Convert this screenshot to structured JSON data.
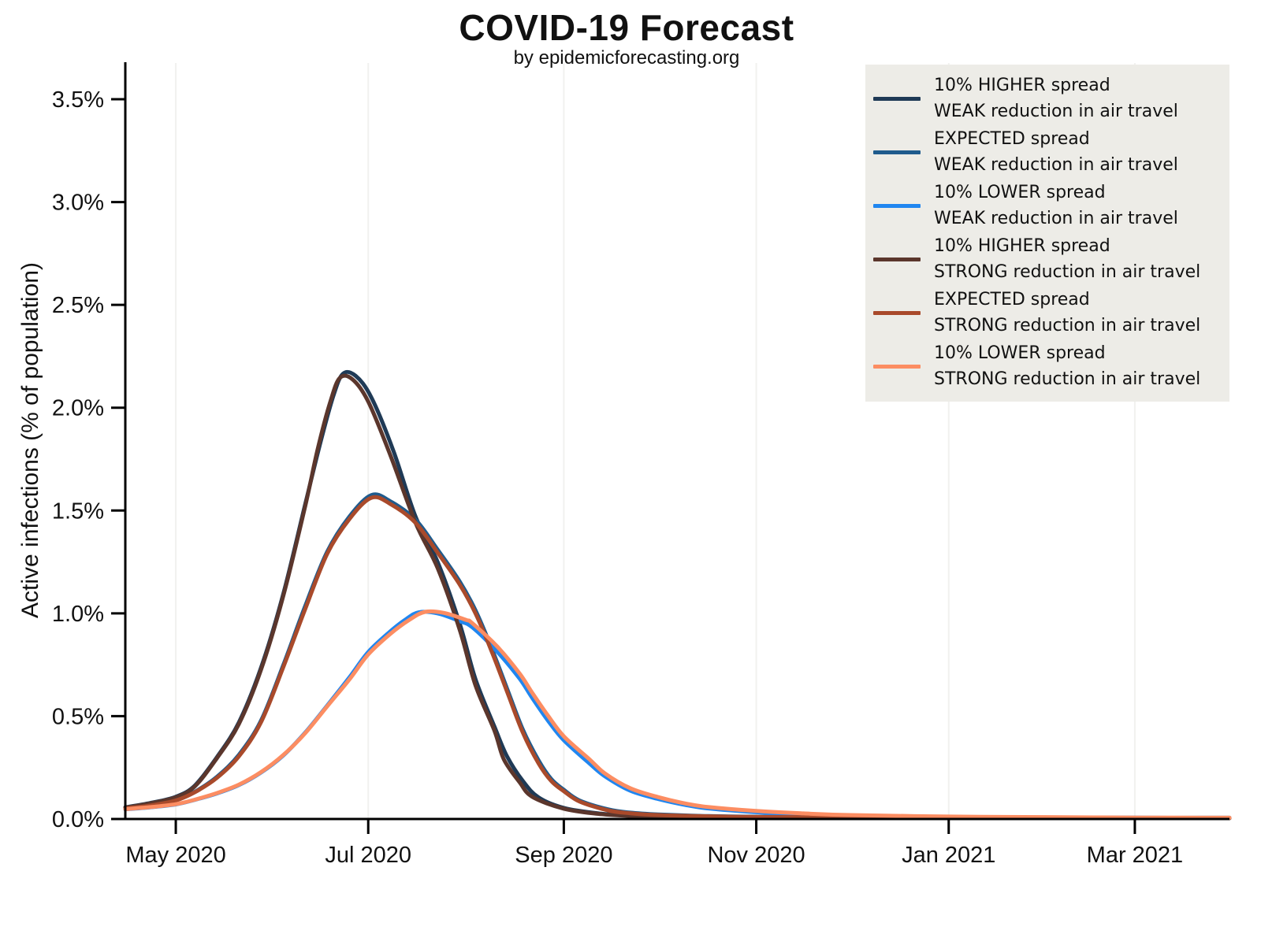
{
  "title": "COVID-19 Forecast",
  "subtitle": "by epidemicforecasting.org",
  "chart_data": {
    "type": "line",
    "title": "COVID-19 Forecast",
    "subtitle": "by epidemicforecasting.org",
    "grid": "vertical-only",
    "legend_position": "top-right",
    "x_axis": {
      "unit": "days since 2020-04-15",
      "range": [
        0,
        350
      ],
      "ticks": [
        {
          "t": 16,
          "label": "May 2020"
        },
        {
          "t": 77,
          "label": "Jul 2020"
        },
        {
          "t": 139,
          "label": "Sep 2020"
        },
        {
          "t": 200,
          "label": "Nov 2020"
        },
        {
          "t": 261,
          "label": "Jan 2021"
        },
        {
          "t": 320,
          "label": "Mar 2021"
        }
      ]
    },
    "y_axis": {
      "label": "Active infections (% of population)",
      "unit": "percent of population",
      "range": [
        0,
        3.68
      ],
      "ticks": [
        {
          "v": 0.0,
          "label": "0.0%"
        },
        {
          "v": 0.5,
          "label": "0.5%"
        },
        {
          "v": 1.0,
          "label": "1.0%"
        },
        {
          "v": 1.5,
          "label": "1.5%"
        },
        {
          "v": 2.0,
          "label": "2.0%"
        },
        {
          "v": 2.5,
          "label": "2.5%"
        },
        {
          "v": 3.0,
          "label": "3.0%"
        },
        {
          "v": 3.5,
          "label": "3.5%"
        }
      ]
    },
    "series": [
      {
        "id": "higher-weak",
        "label_line1": "10% HIGHER spread",
        "label_line2": "WEAK reduction in air travel",
        "color": "#1f3a56",
        "points": [
          [
            0,
            0.057
          ],
          [
            8,
            0.078
          ],
          [
            16,
            0.108
          ],
          [
            22,
            0.162
          ],
          [
            29,
            0.3
          ],
          [
            36,
            0.47
          ],
          [
            43,
            0.735
          ],
          [
            50,
            1.09
          ],
          [
            57,
            1.53
          ],
          [
            62,
            1.84
          ],
          [
            66,
            2.06
          ],
          [
            69,
            2.165
          ],
          [
            73,
            2.155
          ],
          [
            78,
            2.05
          ],
          [
            85,
            1.79
          ],
          [
            92,
            1.47
          ],
          [
            99,
            1.25
          ],
          [
            106,
            0.95
          ],
          [
            111,
            0.68
          ],
          [
            117,
            0.45
          ],
          [
            121,
            0.305
          ],
          [
            126,
            0.185
          ],
          [
            131,
            0.105
          ],
          [
            139,
            0.054
          ],
          [
            150,
            0.027
          ],
          [
            160,
            0.016
          ],
          [
            169,
            0.012
          ],
          [
            185,
            0.008
          ],
          [
            200,
            0.007
          ],
          [
            230,
            0.006
          ],
          [
            261,
            0.005
          ],
          [
            292,
            0.005
          ],
          [
            320,
            0.004
          ],
          [
            350,
            0.004
          ]
        ]
      },
      {
        "id": "expected-weak",
        "label_line1": "EXPECTED spread",
        "label_line2": "WEAK reduction in air travel",
        "color": "#1f5b8d",
        "points": [
          [
            0,
            0.053
          ],
          [
            8,
            0.068
          ],
          [
            16,
            0.092
          ],
          [
            22,
            0.132
          ],
          [
            29,
            0.205
          ],
          [
            36,
            0.312
          ],
          [
            43,
            0.478
          ],
          [
            50,
            0.745
          ],
          [
            57,
            1.035
          ],
          [
            64,
            1.3
          ],
          [
            71,
            1.47
          ],
          [
            78,
            1.575
          ],
          [
            84,
            1.545
          ],
          [
            92,
            1.455
          ],
          [
            99,
            1.31
          ],
          [
            106,
            1.155
          ],
          [
            111,
            1.015
          ],
          [
            116,
            0.835
          ],
          [
            121,
            0.635
          ],
          [
            126,
            0.435
          ],
          [
            131,
            0.285
          ],
          [
            135,
            0.195
          ],
          [
            139,
            0.142
          ],
          [
            144,
            0.09
          ],
          [
            153,
            0.047
          ],
          [
            160,
            0.031
          ],
          [
            169,
            0.022
          ],
          [
            185,
            0.014
          ],
          [
            200,
            0.011
          ],
          [
            230,
            0.009
          ],
          [
            261,
            0.008
          ],
          [
            292,
            0.007
          ],
          [
            320,
            0.006
          ],
          [
            350,
            0.006
          ]
        ]
      },
      {
        "id": "lower-weak",
        "label_line1": "10% LOWER spread",
        "label_line2": "WEAK reduction in air travel",
        "color": "#2086f0",
        "points": [
          [
            0,
            0.047
          ],
          [
            8,
            0.057
          ],
          [
            16,
            0.071
          ],
          [
            22,
            0.093
          ],
          [
            29,
            0.124
          ],
          [
            36,
            0.165
          ],
          [
            43,
            0.226
          ],
          [
            50,
            0.308
          ],
          [
            57,
            0.42
          ],
          [
            64,
            0.552
          ],
          [
            71,
            0.688
          ],
          [
            77,
            0.812
          ],
          [
            84,
            0.912
          ],
          [
            89,
            0.972
          ],
          [
            93,
            1.005
          ],
          [
            99,
            1.0
          ],
          [
            106,
            0.962
          ],
          [
            110,
            0.932
          ],
          [
            118,
            0.812
          ],
          [
            125,
            0.682
          ],
          [
            129,
            0.588
          ],
          [
            134,
            0.478
          ],
          [
            139,
            0.383
          ],
          [
            147,
            0.272
          ],
          [
            152,
            0.208
          ],
          [
            160,
            0.138
          ],
          [
            169,
            0.097
          ],
          [
            178,
            0.067
          ],
          [
            185,
            0.051
          ],
          [
            200,
            0.033
          ],
          [
            215,
            0.022
          ],
          [
            230,
            0.015
          ],
          [
            261,
            0.009
          ],
          [
            292,
            0.007
          ],
          [
            320,
            0.006
          ],
          [
            350,
            0.005
          ]
        ]
      },
      {
        "id": "higher-strong",
        "label_line1": "10% HIGHER spread",
        "label_line2": "STRONG reduction in air travel",
        "color": "#5b362c",
        "points": [
          [
            0,
            0.055
          ],
          [
            8,
            0.076
          ],
          [
            16,
            0.105
          ],
          [
            22,
            0.158
          ],
          [
            29,
            0.295
          ],
          [
            36,
            0.462
          ],
          [
            43,
            0.725
          ],
          [
            50,
            1.08
          ],
          [
            57,
            1.52
          ],
          [
            61,
            1.8
          ],
          [
            65,
            2.03
          ],
          [
            68,
            2.145
          ],
          [
            72,
            2.138
          ],
          [
            77,
            2.03
          ],
          [
            84,
            1.77
          ],
          [
            92,
            1.44
          ],
          [
            99,
            1.22
          ],
          [
            106,
            0.92
          ],
          [
            111,
            0.65
          ],
          [
            117,
            0.43
          ],
          [
            120,
            0.29
          ],
          [
            125,
            0.178
          ],
          [
            129,
            0.108
          ],
          [
            139,
            0.05
          ],
          [
            150,
            0.025
          ],
          [
            160,
            0.015
          ],
          [
            169,
            0.011
          ],
          [
            185,
            0.007
          ],
          [
            200,
            0.006
          ],
          [
            230,
            0.005
          ],
          [
            261,
            0.004
          ],
          [
            292,
            0.004
          ],
          [
            320,
            0.004
          ],
          [
            350,
            0.004
          ]
        ]
      },
      {
        "id": "expected-strong",
        "label_line1": "EXPECTED spread",
        "label_line2": "STRONG reduction in air travel",
        "color": "#a94a2b",
        "points": [
          [
            0,
            0.052
          ],
          [
            8,
            0.066
          ],
          [
            16,
            0.09
          ],
          [
            22,
            0.13
          ],
          [
            29,
            0.2
          ],
          [
            36,
            0.305
          ],
          [
            43,
            0.47
          ],
          [
            50,
            0.735
          ],
          [
            57,
            1.02
          ],
          [
            64,
            1.29
          ],
          [
            71,
            1.458
          ],
          [
            78,
            1.562
          ],
          [
            84,
            1.532
          ],
          [
            92,
            1.44
          ],
          [
            99,
            1.295
          ],
          [
            106,
            1.14
          ],
          [
            111,
            1.0
          ],
          [
            116,
            0.82
          ],
          [
            121,
            0.62
          ],
          [
            126,
            0.42
          ],
          [
            131,
            0.27
          ],
          [
            135,
            0.185
          ],
          [
            139,
            0.135
          ],
          [
            144,
            0.085
          ],
          [
            153,
            0.042
          ],
          [
            160,
            0.028
          ],
          [
            169,
            0.019
          ],
          [
            185,
            0.013
          ],
          [
            200,
            0.01
          ],
          [
            230,
            0.008
          ],
          [
            261,
            0.007
          ],
          [
            292,
            0.006
          ],
          [
            320,
            0.005
          ],
          [
            350,
            0.005
          ]
        ]
      },
      {
        "id": "lower-strong",
        "label_line1": "10% LOWER spread",
        "label_line2": "STRONG reduction in air travel",
        "color": "#fc8d62",
        "points": [
          [
            0,
            0.048
          ],
          [
            8,
            0.058
          ],
          [
            16,
            0.072
          ],
          [
            22,
            0.094
          ],
          [
            29,
            0.126
          ],
          [
            36,
            0.167
          ],
          [
            43,
            0.228
          ],
          [
            50,
            0.31
          ],
          [
            57,
            0.417
          ],
          [
            64,
            0.548
          ],
          [
            71,
            0.678
          ],
          [
            77,
            0.8
          ],
          [
            84,
            0.9
          ],
          [
            90,
            0.968
          ],
          [
            95,
            1.007
          ],
          [
            101,
            1.002
          ],
          [
            108,
            0.968
          ],
          [
            110,
            0.952
          ],
          [
            118,
            0.837
          ],
          [
            125,
            0.707
          ],
          [
            129,
            0.613
          ],
          [
            134,
            0.502
          ],
          [
            139,
            0.402
          ],
          [
            147,
            0.292
          ],
          [
            152,
            0.222
          ],
          [
            160,
            0.15
          ],
          [
            169,
            0.106
          ],
          [
            178,
            0.074
          ],
          [
            185,
            0.058
          ],
          [
            200,
            0.039
          ],
          [
            215,
            0.027
          ],
          [
            230,
            0.019
          ],
          [
            261,
            0.012
          ],
          [
            292,
            0.009
          ],
          [
            320,
            0.007
          ],
          [
            350,
            0.006
          ]
        ]
      }
    ]
  },
  "colors": {
    "background": "#ffffff",
    "axis": "#000000",
    "gridline": "#f1f1ef",
    "legend_background": "#edece7",
    "text": "#111111"
  }
}
